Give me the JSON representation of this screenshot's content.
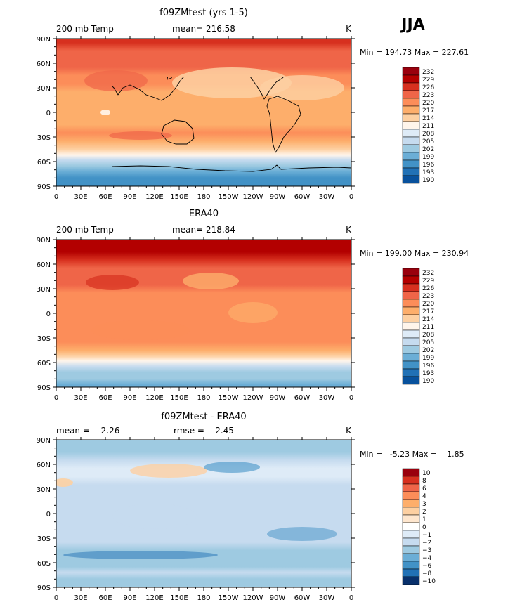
{
  "figure_label": "JJA",
  "panels": [
    {
      "title": "f09ZMtest (yrs 1-5)",
      "left_label": "200 mb Temp",
      "center_label": "mean= 216.58",
      "right_label": "K",
      "minmax": "Min = 194.73 Max = 227.61"
    },
    {
      "title": "ERA40",
      "left_label": "200 mb Temp",
      "center_label": "mean= 218.84",
      "right_label": "K",
      "minmax": "Min = 199.00 Max = 230.94"
    },
    {
      "title": "f09ZMtest - ERA40",
      "left_label": "mean =   -2.26",
      "center_label": "rmse =    2.45",
      "right_label": "K",
      "minmax": "Min =   -5.23 Max =    1.85"
    }
  ],
  "chart_data": [
    {
      "type": "heatmap",
      "title": "f09ZMtest (yrs 1-5)",
      "variable": "200 mb Temp",
      "units": "K",
      "mean": 216.58,
      "min": 194.73,
      "max": 227.61,
      "x_ticks": [
        "0",
        "30E",
        "60E",
        "90E",
        "120E",
        "150E",
        "180",
        "150W",
        "120W",
        "90W",
        "60W",
        "30W",
        "0"
      ],
      "y_ticks": [
        "90N",
        "60N",
        "30N",
        "0",
        "30S",
        "60S",
        "90S"
      ],
      "xlim": [
        0,
        360
      ],
      "ylim": [
        -90,
        90
      ],
      "colorbar_levels": [
        "232",
        "229",
        "226",
        "223",
        "220",
        "217",
        "214",
        "211",
        "208",
        "205",
        "202",
        "199",
        "196",
        "193",
        "190"
      ],
      "zonal_profile": {
        "lat": [
          85,
          75,
          65,
          55,
          45,
          35,
          25,
          15,
          5,
          -5,
          -15,
          -25,
          -35,
          -45,
          -52,
          -58,
          -65,
          -72,
          -80,
          -87
        ],
        "value": [
          227,
          224,
          223,
          222,
          221,
          219,
          218,
          218,
          217,
          217,
          218,
          219,
          218,
          214,
          210,
          206,
          201,
          198,
          196,
          194.73
        ]
      }
    },
    {
      "type": "heatmap",
      "title": "ERA40",
      "variable": "200 mb Temp",
      "units": "K",
      "mean": 218.84,
      "min": 199.0,
      "max": 230.94,
      "x_ticks": [
        "0",
        "30E",
        "60E",
        "90E",
        "120E",
        "150E",
        "180",
        "150W",
        "120W",
        "90W",
        "60W",
        "30W",
        "0"
      ],
      "y_ticks": [
        "90N",
        "60N",
        "30N",
        "0",
        "30S",
        "60S",
        "90S"
      ],
      "xlim": [
        0,
        360
      ],
      "ylim": [
        -90,
        90
      ],
      "colorbar_levels": [
        "232",
        "229",
        "226",
        "223",
        "220",
        "217",
        "214",
        "211",
        "208",
        "205",
        "202",
        "199",
        "196",
        "193",
        "190"
      ],
      "zonal_profile": {
        "lat": [
          85,
          75,
          65,
          55,
          45,
          35,
          25,
          15,
          5,
          -5,
          -15,
          -25,
          -35,
          -45,
          -52,
          -58,
          -65,
          -72,
          -80,
          -87
        ],
        "value": [
          230,
          228,
          226,
          224,
          223,
          222,
          220,
          220,
          219,
          219,
          220,
          221,
          220,
          218,
          215,
          211,
          206,
          203,
          201,
          199
        ]
      }
    },
    {
      "type": "heatmap",
      "title": "f09ZMtest - ERA40",
      "variable": "difference",
      "units": "K",
      "mean": -2.26,
      "rmse": 2.45,
      "min": -5.23,
      "max": 1.85,
      "x_ticks": [
        "0",
        "30E",
        "60E",
        "90E",
        "120E",
        "150E",
        "180",
        "150W",
        "120W",
        "90W",
        "60W",
        "30W",
        "0"
      ],
      "y_ticks": [
        "90N",
        "60N",
        "30N",
        "0",
        "30S",
        "60S",
        "90S"
      ],
      "xlim": [
        0,
        360
      ],
      "ylim": [
        -90,
        90
      ],
      "colorbar_levels": [
        "10",
        "8",
        "6",
        "4",
        "3",
        "2",
        "1",
        "0",
        "−1",
        "−2",
        "−3",
        "−4",
        "−6",
        "−8",
        "−10"
      ],
      "zonal_profile": {
        "lat": [
          85,
          75,
          65,
          55,
          45,
          35,
          25,
          15,
          5,
          -5,
          -15,
          -25,
          -35,
          -45,
          -52,
          -58,
          -65,
          -72,
          -80,
          -87
        ],
        "value": [
          -3,
          -3,
          -2.5,
          -1.5,
          -1.5,
          -2,
          -2,
          -2,
          -2,
          -2,
          -2,
          -2,
          -2,
          -3,
          -3.5,
          -3.5,
          -3,
          -2.5,
          -3.5,
          -3
        ]
      }
    }
  ],
  "colors": {
    "full_field": [
      "#99000d",
      "#b30000",
      "#d7301f",
      "#ef6548",
      "#fc8d59",
      "#fdae6b",
      "#fdd0a2",
      "#fff5eb",
      "#deebf7",
      "#c6dbef",
      "#9ecae1",
      "#6baed6",
      "#4292c6",
      "#2171b5",
      "#08519c"
    ],
    "difference": [
      "#99000d",
      "#d7301f",
      "#ef6548",
      "#fc8d59",
      "#fdae6b",
      "#fdd0a2",
      "#fee6ce",
      "#ffffff",
      "#deebf7",
      "#c6dbef",
      "#9ecae1",
      "#6baed6",
      "#4292c6",
      "#2171b5",
      "#08306b"
    ]
  }
}
